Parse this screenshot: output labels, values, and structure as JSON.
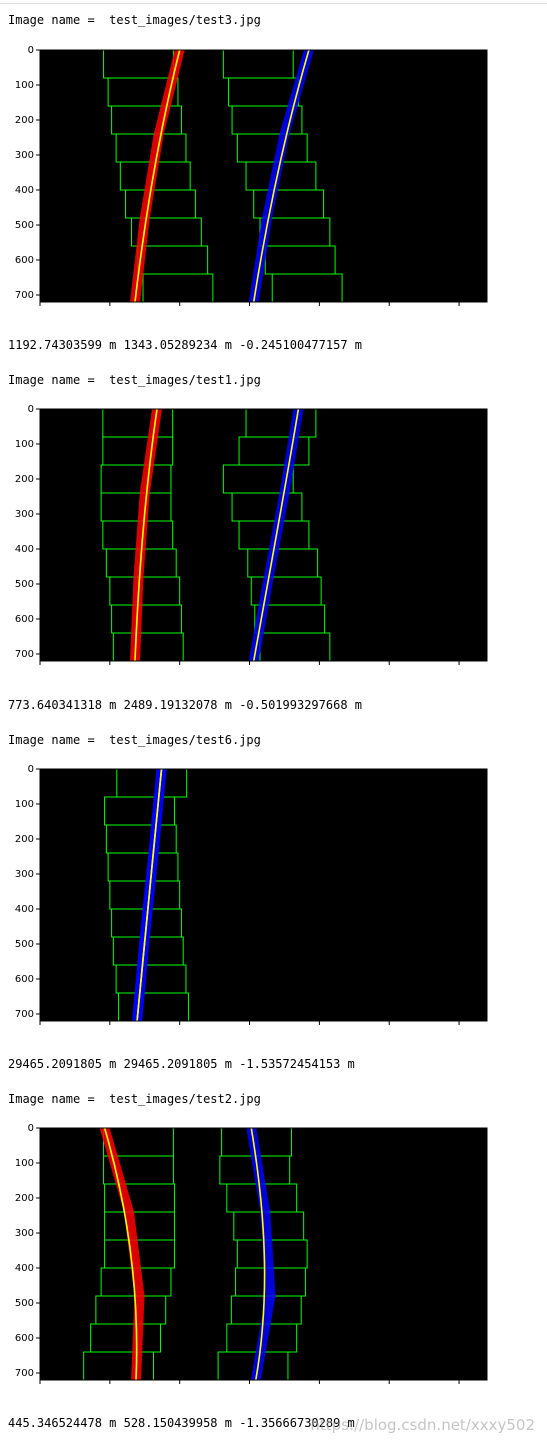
{
  "outputs": [
    {
      "image_label": "Image name =  test_images/test3.jpg",
      "result_text": "1192.74303599 m 1343.05289234 m -0.245100477157 m",
      "chart_data": {
        "type": "scatter",
        "xlim": [
          0,
          1280
        ],
        "ylim": [
          720,
          0
        ],
        "xticks": [
          "0",
          "200",
          "400",
          "600",
          "800",
          "1000",
          "1200"
        ],
        "yticks": [
          "0",
          "100",
          "200",
          "300",
          "400",
          "500",
          "600",
          "700"
        ],
        "left_fit": {
          "x": [
            400,
            340,
            300,
            272
          ],
          "y": [
            0,
            240,
            480,
            720
          ]
        },
        "right_fit": {
          "x": [
            770,
            700,
            650,
            612
          ],
          "y": [
            0,
            240,
            480,
            720
          ]
        },
        "left_pixels_color": "#ff0000",
        "right_pixels_color": "#0000ff",
        "left_windows_x": [
          395,
          380,
          362,
          345,
          330,
          318,
          305,
          295,
          282
        ],
        "right_windows_x": [
          765,
          745,
          730,
          712,
          690,
          665,
          650,
          640,
          625
        ]
      }
    },
    {
      "image_label": "Image name =  test_images/test1.jpg",
      "result_text": "773.640341318 m 2489.19132078 m -0.501993297668 m",
      "chart_data": {
        "type": "scatter",
        "xlim": [
          0,
          1280
        ],
        "ylim": [
          720,
          0
        ],
        "xticks": [
          "0",
          "200",
          "400",
          "600",
          "800",
          "1000",
          "1200"
        ],
        "yticks": [
          "0",
          "100",
          "200",
          "300",
          "400",
          "500",
          "600",
          "700"
        ],
        "left_fit": {
          "x": [
            335,
            300,
            282,
            272
          ],
          "y": [
            0,
            240,
            480,
            720
          ]
        },
        "right_fit": {
          "x": [
            740,
            700,
            655,
            612
          ],
          "y": [
            0,
            240,
            480,
            720
          ]
        },
        "left_pixels_color": "#ff0000",
        "right_pixels_color": "#0000ff",
        "left_windows_x": [
          310,
          305,
          300,
          290,
          280,
          275,
          275,
          280,
          280
        ],
        "right_windows_x": [
          730,
          715,
          705,
          695,
          670,
          650,
          625,
          670,
          690
        ]
      }
    },
    {
      "image_label": "Image name =  test_images/test6.jpg",
      "result_text": "29465.2091805 m 29465.2091805 m -1.53572454153 m",
      "chart_data": {
        "type": "scatter",
        "xlim": [
          0,
          1280
        ],
        "ylim": [
          720,
          0
        ],
        "xticks": [
          "0",
          "200",
          "400",
          "600",
          "800",
          "1000",
          "1200"
        ],
        "yticks": [
          "0",
          "100",
          "200",
          "300",
          "400",
          "500",
          "600",
          "700"
        ],
        "left_fit": {
          "x": [
            348,
            325,
            300,
            278
          ],
          "y": [
            0,
            240,
            480,
            720
          ]
        },
        "right_fit": {
          "x": [
            348,
            325,
            300,
            278
          ],
          "y": [
            0,
            240,
            480,
            720
          ]
        },
        "left_pixels_color": "#0000ff",
        "right_pixels_color": "#0000ff",
        "left_windows_x": [
          325,
          318,
          310,
          305,
          300,
          295,
          290,
          285,
          320
        ],
        "right_windows_x": []
      }
    },
    {
      "image_label": "Image name =  test_images/test2.jpg",
      "result_text": "445.346524478 m 528.150439958 m -1.35666730289 m",
      "chart_data": {
        "type": "scatter",
        "xlim": [
          0,
          1280
        ],
        "ylim": [
          720,
          0
        ],
        "xticks": [
          "0",
          "200",
          "400",
          "600",
          "800",
          "1000",
          "1200"
        ],
        "yticks": [
          "0",
          "100",
          "200",
          "300",
          "400",
          "500",
          "600",
          "700"
        ],
        "left_fit": {
          "x": [
            185,
            255,
            285,
            275
          ],
          "y": [
            0,
            240,
            480,
            720
          ]
        },
        "right_fit": {
          "x": [
            605,
            645,
            660,
            618
          ],
          "y": [
            0,
            240,
            480,
            720
          ]
        },
        "left_pixels_color": "#ff0000",
        "right_pixels_color": "#0000ff",
        "left_windows_x": [
          225,
          245,
          260,
          275,
          285,
          285,
          285,
          282,
          282
        ],
        "right_windows_x": [
          610,
          635,
          648,
          660,
          665,
          655,
          635,
          615,
          620
        ]
      }
    }
  ],
  "watermark": "https://blog.csdn.net/xxxy502",
  "colors": {
    "fit_line": "#ffff00",
    "window": "#00ff00",
    "lane_white": "#ffffff"
  }
}
